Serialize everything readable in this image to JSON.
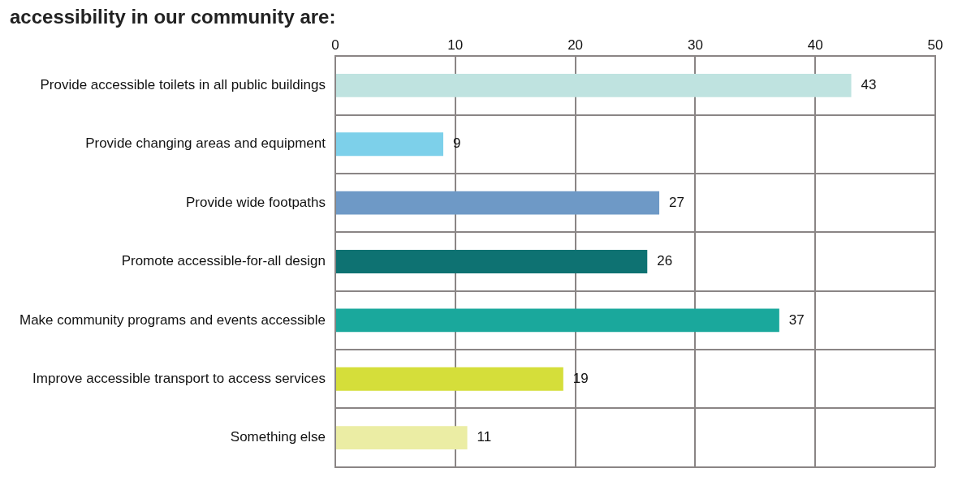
{
  "chart_data": {
    "type": "bar",
    "orientation": "horizontal",
    "title": "accessibility in our community are:",
    "categories": [
      "Provide accessible toilets in all public buildings",
      "Provide changing areas and equipment",
      "Provide wide footpaths",
      "Promote accessible-for-all design",
      "Make community programs and events accessible",
      "Improve accessible transport to access services",
      "Something else"
    ],
    "values": [
      43,
      9,
      27,
      26,
      37,
      19,
      11
    ],
    "colors": [
      "#bfe3e0",
      "#7dd0ea",
      "#6e99c6",
      "#0e7272",
      "#1aa89c",
      "#d5de3a",
      "#ebeda4"
    ],
    "xlim": [
      0,
      50
    ],
    "xticks": [
      0,
      10,
      20,
      30,
      40,
      50
    ],
    "grid": true,
    "data_labels": true
  }
}
